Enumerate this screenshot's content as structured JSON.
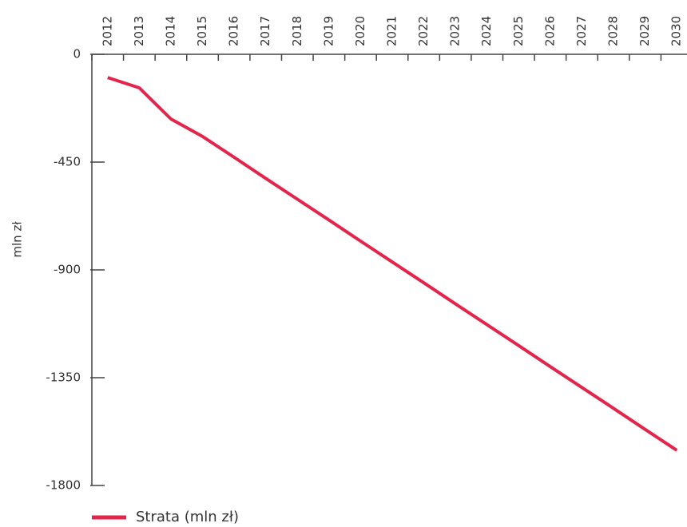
{
  "chart_data": {
    "type": "line",
    "y_label": "mln zł",
    "categories": [
      "2012",
      "2013",
      "2014",
      "2015",
      "2016",
      "2017",
      "2018",
      "2019",
      "2020",
      "2021",
      "2022",
      "2023",
      "2024",
      "2025",
      "2026",
      "2027",
      "2028",
      "2029",
      "2030"
    ],
    "series": [
      {
        "name": "Strata (mln zł)",
        "color": "#e3254b",
        "values": [
          -97,
          -140,
          -270,
          -343,
          -430,
          -518,
          -605,
          -692,
          -780,
          -867,
          -954,
          -1042,
          -1129,
          -1216,
          -1304,
          -1391,
          -1478,
          -1566,
          -1653
        ]
      }
    ],
    "ylim": [
      -1800,
      0
    ],
    "yticks": [
      0,
      -450,
      -900,
      -1350,
      -1800
    ],
    "legend": "bottom-left"
  }
}
